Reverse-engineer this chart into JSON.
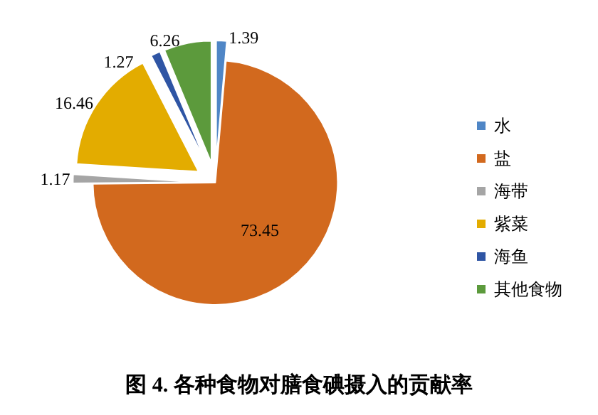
{
  "chart_data": {
    "type": "pie",
    "title": "图 4. 各种食物对膳食碘摄入的贡献率",
    "categories": [
      "水",
      "盐",
      "海带",
      "紫菜",
      "海鱼",
      "其他食物"
    ],
    "values": [
      1.39,
      73.45,
      1.17,
      16.46,
      1.27,
      6.26
    ],
    "colors": [
      "#4f86c6",
      "#d2691e",
      "#a5a5a5",
      "#e3ac00",
      "#2f55a4",
      "#5c9a3c"
    ],
    "data_labels": true,
    "legend": "right"
  }
}
